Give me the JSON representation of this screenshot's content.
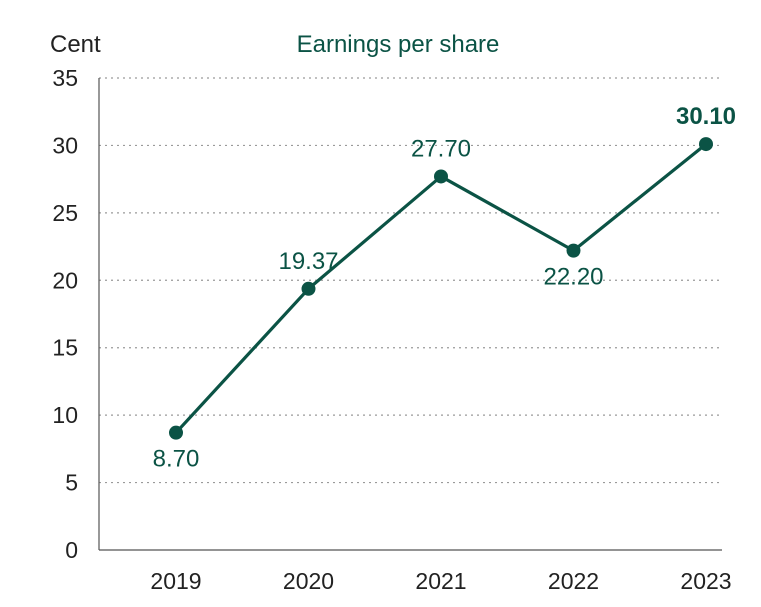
{
  "chart_data": {
    "type": "line",
    "title": "Earnings per share",
    "ylabel": "Cent",
    "xlabel": "",
    "categories": [
      "2019",
      "2020",
      "2021",
      "2022",
      "2023"
    ],
    "series": [
      {
        "values": [
          8.7,
          19.37,
          27.7,
          22.2,
          30.1
        ]
      }
    ],
    "value_labels": [
      "8.70",
      "19.37",
      "27.70",
      "22.20",
      "30.10"
    ],
    "highlight_label_index": 4,
    "ylim": [
      0,
      35
    ],
    "yticks": [
      "0",
      "5",
      "10",
      "15",
      "20",
      "25",
      "30",
      "35"
    ],
    "grid": true,
    "grid_style": "dotted",
    "color": "#0b5345"
  }
}
